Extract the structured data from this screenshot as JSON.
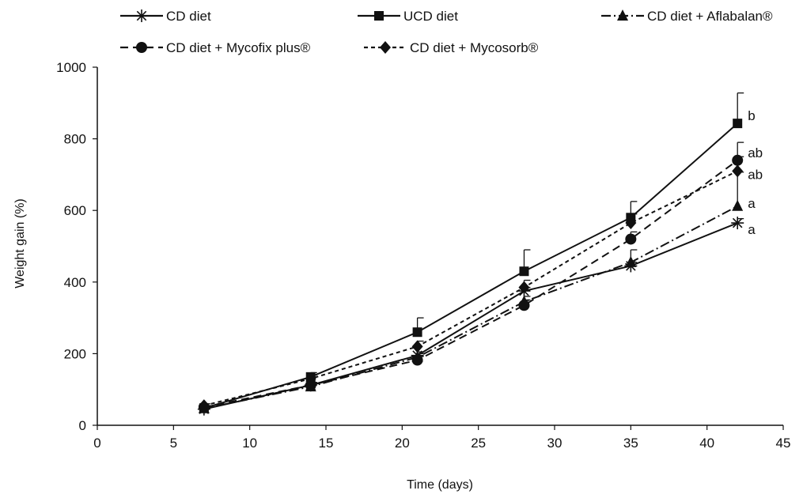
{
  "chart_data": {
    "type": "line",
    "xlabel": "Time (days)",
    "ylabel": "Weight gain (%)",
    "xlim": [
      0,
      45
    ],
    "ylim": [
      0,
      1000
    ],
    "x_ticks": [
      0,
      5,
      10,
      15,
      20,
      25,
      30,
      35,
      40,
      45
    ],
    "y_ticks": [
      0,
      200,
      400,
      600,
      800,
      1000
    ],
    "x": [
      7,
      14,
      21,
      28,
      35,
      42
    ],
    "grid": false,
    "legend_position": "top",
    "series": [
      {
        "name": "CD diet",
        "marker": "asterisk",
        "dash": "solid",
        "values": [
          45,
          112,
          195,
          375,
          445,
          565
        ],
        "error": [
          5,
          8,
          10,
          10,
          10,
          12
        ],
        "significance": "a"
      },
      {
        "name": "UCD diet",
        "marker": "square",
        "dash": "solid",
        "values": [
          48,
          135,
          260,
          430,
          580,
          843
        ],
        "error": [
          5,
          12,
          40,
          60,
          45,
          85
        ],
        "significance": "b"
      },
      {
        "name": "CD diet + Aflabalan®",
        "marker": "triangle",
        "dash": "dashdot",
        "values": [
          47,
          108,
          190,
          345,
          455,
          612
        ],
        "error": [
          5,
          8,
          10,
          15,
          35,
          95
        ],
        "significance": "a"
      },
      {
        "name": "CD diet + Mycofix plus®",
        "marker": "circle",
        "dash": "dashed",
        "values": [
          50,
          112,
          182,
          335,
          520,
          740
        ],
        "error": [
          5,
          8,
          10,
          15,
          20,
          50
        ],
        "significance": "ab"
      },
      {
        "name": "CD diet + Mycosorb®",
        "marker": "diamond",
        "dash": "dotted",
        "values": [
          55,
          130,
          220,
          385,
          565,
          710
        ],
        "error": [
          5,
          10,
          15,
          20,
          25,
          40
        ],
        "significance": "ab"
      }
    ]
  }
}
